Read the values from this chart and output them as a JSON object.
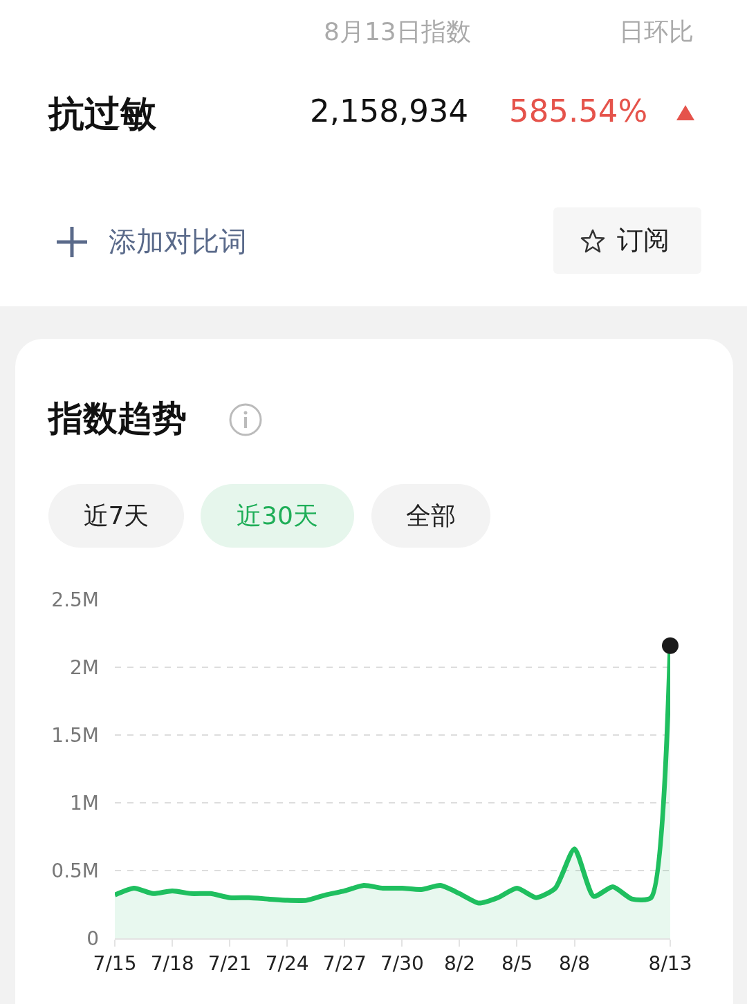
{
  "chart_data": {
    "type": "area",
    "title": "指数趋势",
    "annotations": [
      "8月13日指数",
      "日环比",
      "抗过敏",
      "2,158,934",
      "585.54%",
      "添加对比词",
      "订阅",
      "近7天",
      "近30天",
      "全部"
    ],
    "x": [
      "--07-15",
      "--07-16",
      "--07-17",
      "--07-18",
      "--07-19",
      "--07-20",
      "--07-21",
      "--07-22",
      "--07-23",
      "--07-24",
      "--07-25",
      "--07-26",
      "--07-27",
      "--07-28",
      "--07-29",
      "--07-30",
      "--07-31",
      "--08-01",
      "--08-02",
      "--08-03",
      "--08-04",
      "--08-05",
      "--08-06",
      "--08-07",
      "--08-08",
      "--08-09",
      "--08-10",
      "--08-11",
      "--08-12",
      "--08-13"
    ],
    "series": [
      {
        "color": "#1fbf5f",
        "values": [
          0.32,
          0.37,
          0.33,
          0.35,
          0.33,
          0.33,
          0.3,
          0.3,
          0.29,
          0.28,
          0.28,
          0.32,
          0.35,
          0.39,
          0.37,
          0.37,
          0.36,
          0.39,
          0.33,
          0.26,
          0.3,
          0.37,
          0.3,
          0.37,
          0.66,
          0.31,
          0.38,
          0.29,
          0.3,
          2.16
        ]
      },
      {
        "type": "scatter",
        "color": "#1a1a1a",
        "marker": "circle",
        "x": [
          "--08-13"
        ],
        "values": [
          2.16
        ]
      }
    ],
    "xlim": [
      "--07-15",
      "--08-13"
    ],
    "xticks": [
      {
        "value": "--07-15",
        "label": "7/15"
      },
      {
        "value": "--07-18",
        "label": "7/18"
      },
      {
        "value": "--07-21",
        "label": "7/21"
      },
      {
        "value": "--07-24",
        "label": "7/24"
      },
      {
        "value": "--07-27",
        "label": "7/27"
      },
      {
        "value": "--07-30",
        "label": "7/30"
      },
      {
        "value": "--08-02",
        "label": "8/2"
      },
      {
        "value": "--08-05",
        "label": "8/5"
      },
      {
        "value": "--08-08",
        "label": "8/8"
      },
      {
        "value": "--08-13",
        "label": "8/13"
      }
    ],
    "ylim": [
      0,
      2.5
    ],
    "yticks": [
      0,
      {
        "value": 0.5,
        "label": "0.5M"
      },
      {
        "value": 1,
        "label": "1M"
      },
      {
        "value": 1.5,
        "label": "1.5M"
      },
      {
        "value": 2,
        "label": "2M"
      },
      {
        "value": 2.5,
        "label": "2.5M"
      }
    ],
    "grid": "y",
    "line_style": "solid"
  }
}
